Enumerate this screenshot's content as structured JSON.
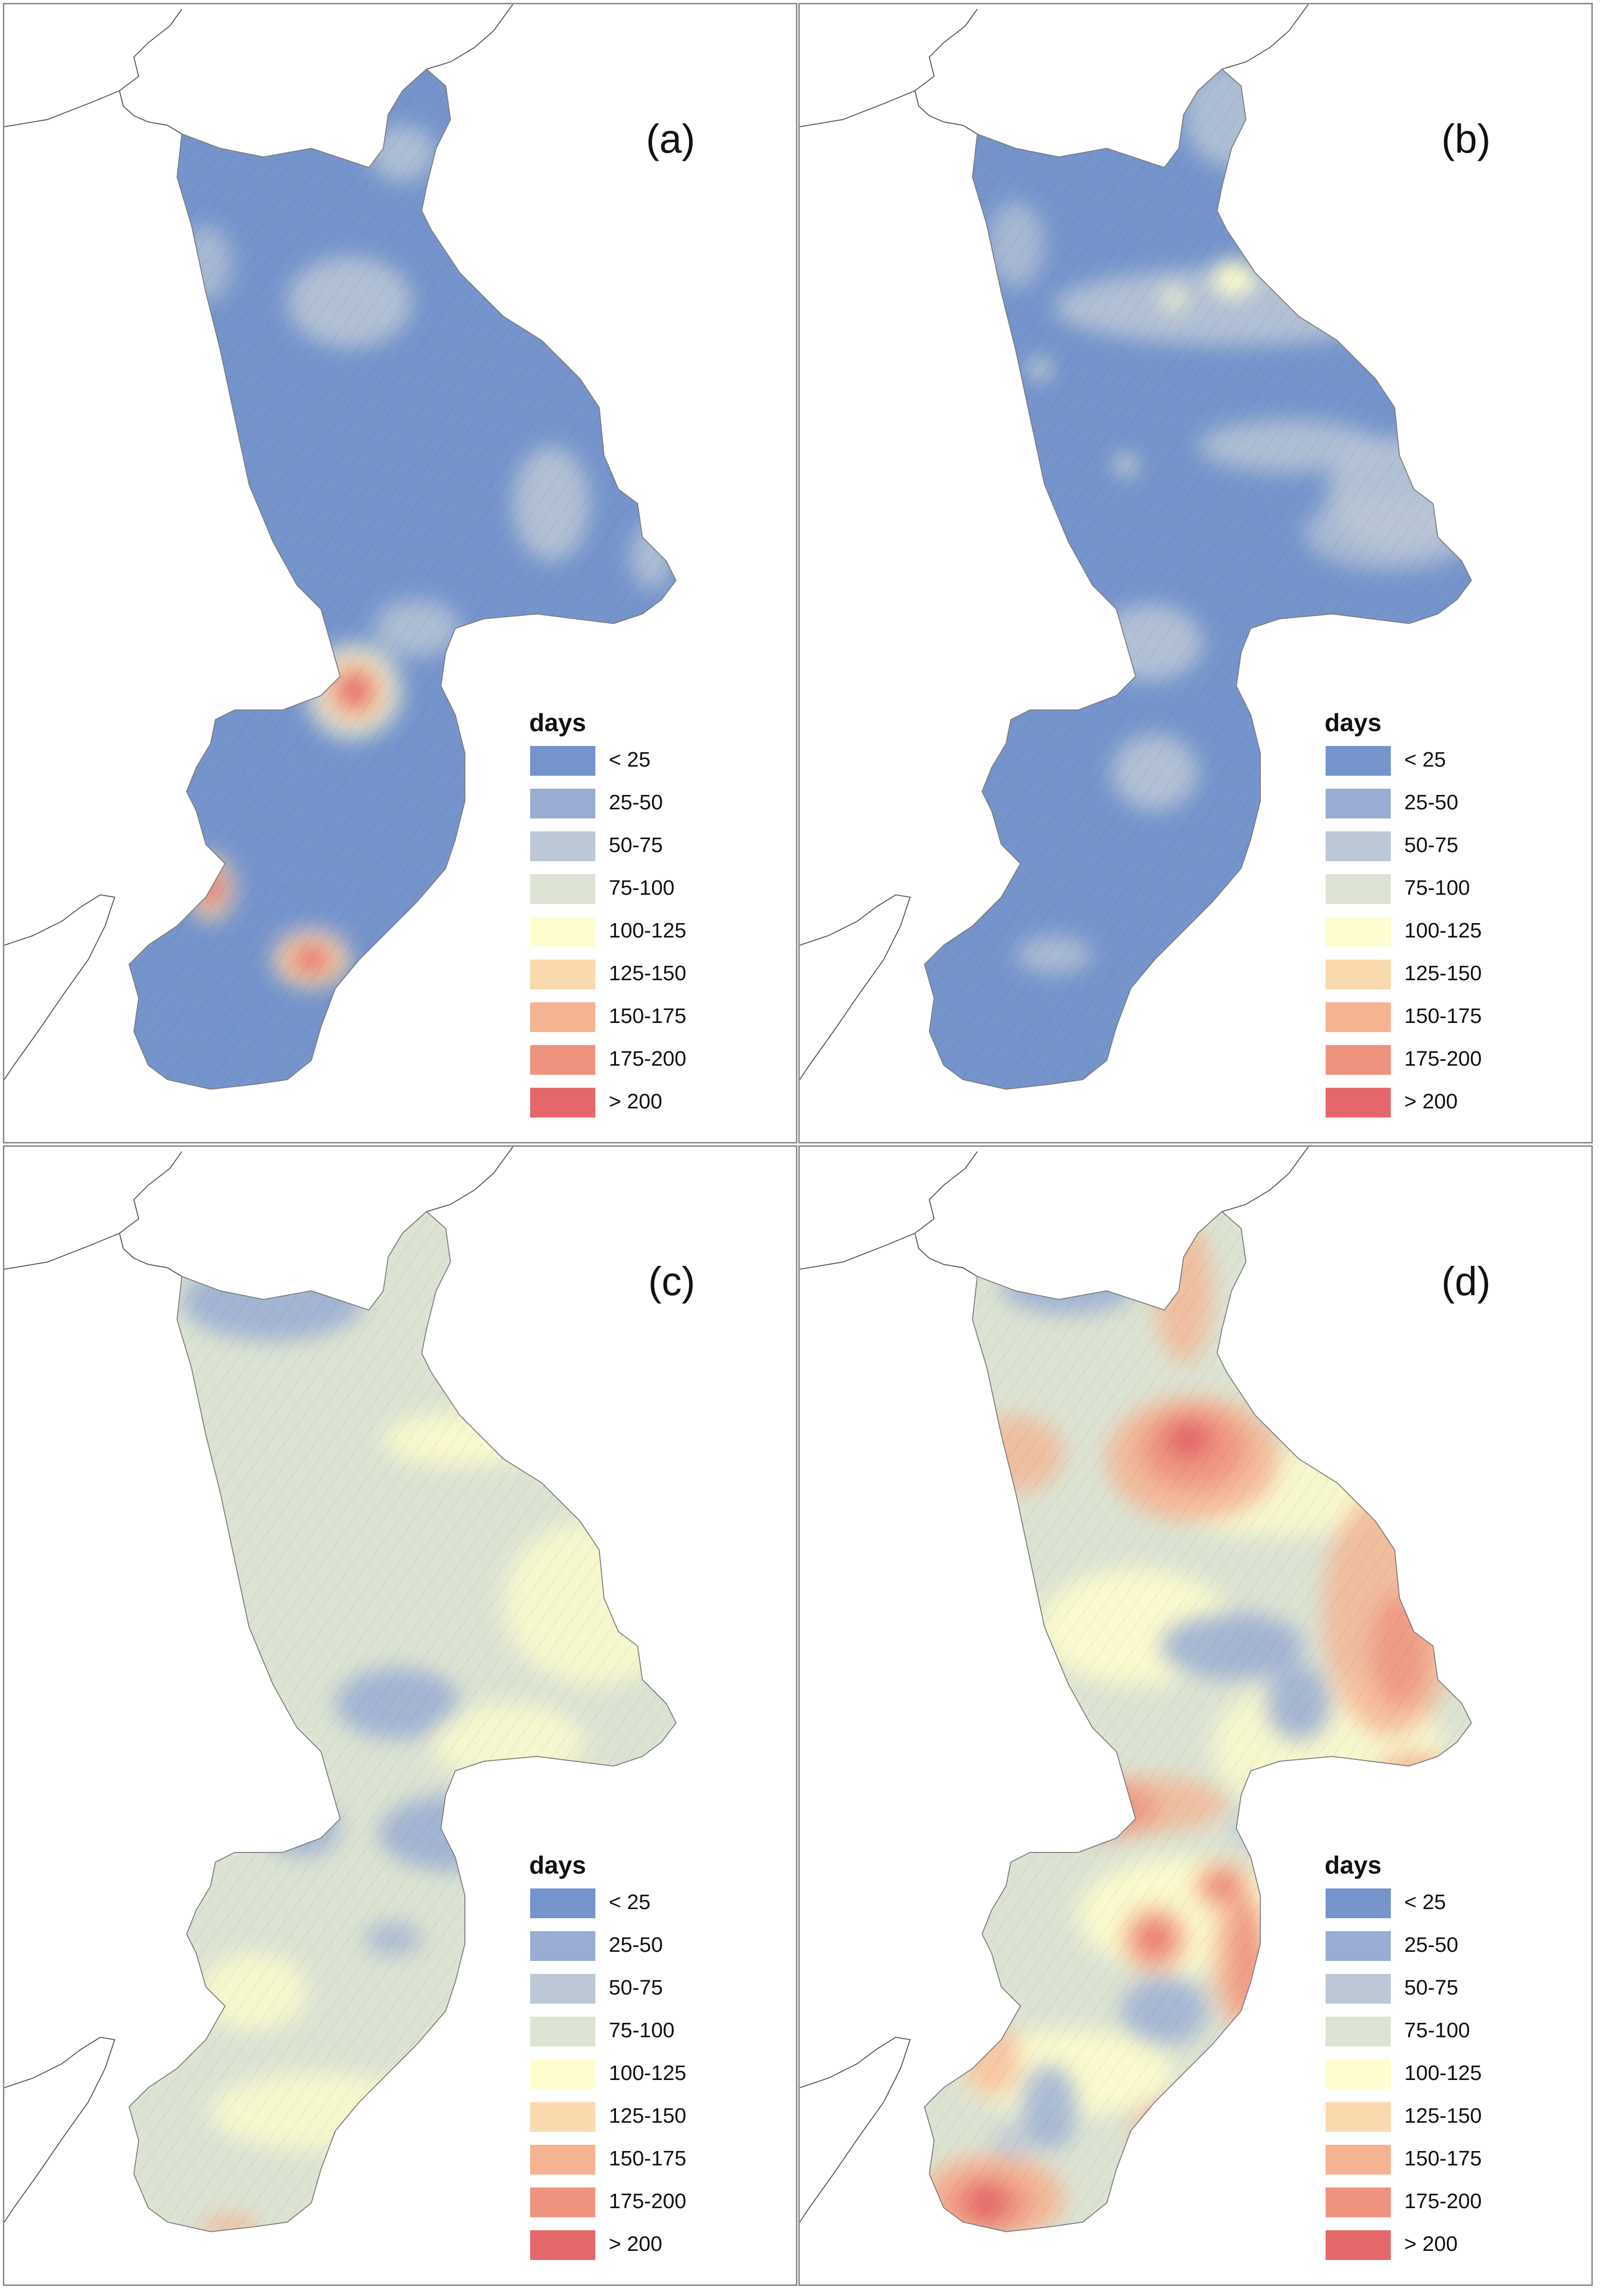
{
  "figure": {
    "panels": [
      {
        "label": "(a)",
        "variant": "a"
      },
      {
        "label": "(b)",
        "variant": "b"
      },
      {
        "label": "(c)",
        "variant": "c"
      },
      {
        "label": "(d)",
        "variant": "d"
      }
    ]
  },
  "legend": {
    "title": "days",
    "classes": [
      {
        "label": "< 25",
        "color": "#7594cc"
      },
      {
        "label": "25-50",
        "color": "#99add4"
      },
      {
        "label": "50-75",
        "color": "#bcc8d6"
      },
      {
        "label": "75-100",
        "color": "#dce3d2"
      },
      {
        "label": "100-125",
        "color": "#fefdcd"
      },
      {
        "label": "125-150",
        "color": "#fbd9ae"
      },
      {
        "label": "150-175",
        "color": "#f6b392"
      },
      {
        "label": "175-200",
        "color": "#ee937e"
      },
      {
        "label": "> 200",
        "color": "#e4686a"
      }
    ]
  }
}
